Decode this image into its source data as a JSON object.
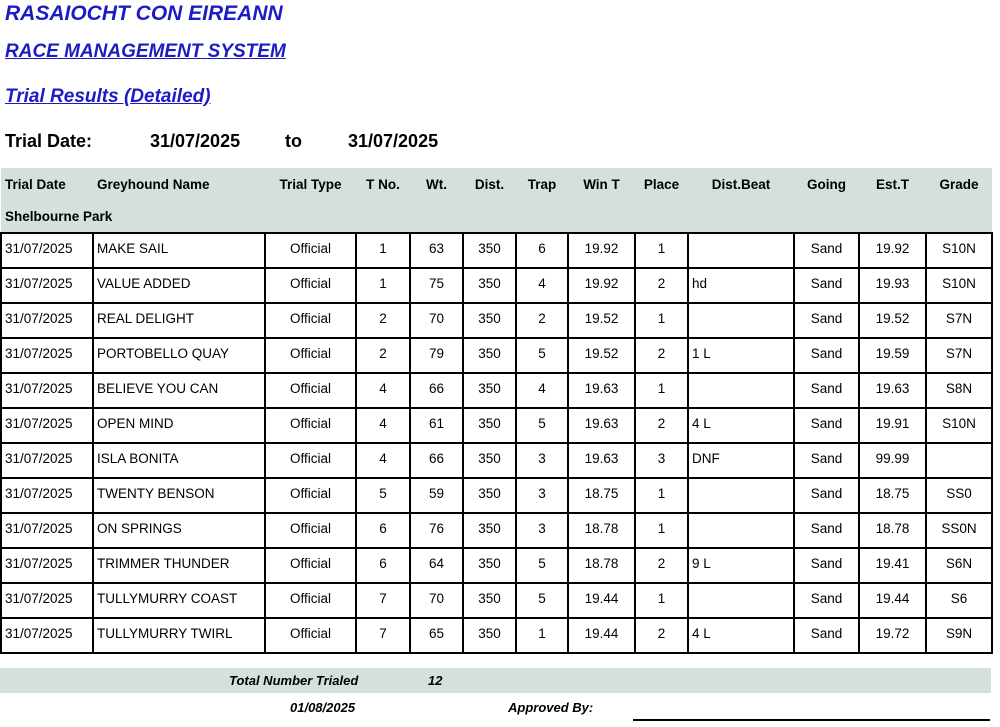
{
  "header": {
    "org": "RASAIOCHT CON EIREANN",
    "system": "RACE MANAGEMENT SYSTEM",
    "report": "Trial Results (Detailed)"
  },
  "date_range": {
    "label": "Trial Date:",
    "from": "31/07/2025",
    "to_label": "to",
    "to": "31/07/2025"
  },
  "columns": [
    "Trial Date",
    "Greyhound Name",
    "Trial Type",
    "T No.",
    "Wt.",
    "Dist.",
    "Trap",
    "Win T",
    "Place",
    "Dist.Beat",
    "Going",
    "Est.T",
    "Grade"
  ],
  "track": "Shelbourne Park",
  "rows": [
    [
      "31/07/2025",
      "MAKE SAIL",
      "Official",
      "1",
      "63",
      "350",
      "6",
      "19.92",
      "1",
      "",
      "Sand",
      "19.92",
      "S10N"
    ],
    [
      "31/07/2025",
      "VALUE ADDED",
      "Official",
      "1",
      "75",
      "350",
      "4",
      "19.92",
      "2",
      "hd",
      "Sand",
      "19.93",
      "S10N"
    ],
    [
      "31/07/2025",
      "REAL DELIGHT",
      "Official",
      "2",
      "70",
      "350",
      "2",
      "19.52",
      "1",
      "",
      "Sand",
      "19.52",
      "S7N"
    ],
    [
      "31/07/2025",
      "PORTOBELLO QUAY",
      "Official",
      "2",
      "79",
      "350",
      "5",
      "19.52",
      "2",
      "1 L",
      "Sand",
      "19.59",
      "S7N"
    ],
    [
      "31/07/2025",
      "BELIEVE YOU CAN",
      "Official",
      "4",
      "66",
      "350",
      "4",
      "19.63",
      "1",
      "",
      "Sand",
      "19.63",
      "S8N"
    ],
    [
      "31/07/2025",
      "OPEN MIND",
      "Official",
      "4",
      "61",
      "350",
      "5",
      "19.63",
      "2",
      "4 L",
      "Sand",
      "19.91",
      "S10N"
    ],
    [
      "31/07/2025",
      "ISLA BONITA",
      "Official",
      "4",
      "66",
      "350",
      "3",
      "19.63",
      "3",
      "DNF",
      "Sand",
      "99.99",
      ""
    ],
    [
      "31/07/2025",
      "TWENTY BENSON",
      "Official",
      "5",
      "59",
      "350",
      "3",
      "18.75",
      "1",
      "",
      "Sand",
      "18.75",
      "SS0"
    ],
    [
      "31/07/2025",
      "ON SPRINGS",
      "Official",
      "6",
      "76",
      "350",
      "3",
      "18.78",
      "1",
      "",
      "Sand",
      "18.78",
      "SS0N"
    ],
    [
      "31/07/2025",
      "TRIMMER THUNDER",
      "Official",
      "6",
      "64",
      "350",
      "5",
      "18.78",
      "2",
      "9 L",
      "Sand",
      "19.41",
      "S6N"
    ],
    [
      "31/07/2025",
      "TULLYMURRY COAST",
      "Official",
      "7",
      "70",
      "350",
      "5",
      "19.44",
      "1",
      "",
      "Sand",
      "19.44",
      "S6"
    ],
    [
      "31/07/2025",
      "TULLYMURRY TWIRL",
      "Official",
      "7",
      "65",
      "350",
      "1",
      "19.44",
      "2",
      "4 L",
      "Sand",
      "19.72",
      "S9N"
    ]
  ],
  "footer": {
    "total_label": "Total Number Trialed",
    "total": "12",
    "print_date": "01/08/2025",
    "approved_label": "Approved By:"
  }
}
